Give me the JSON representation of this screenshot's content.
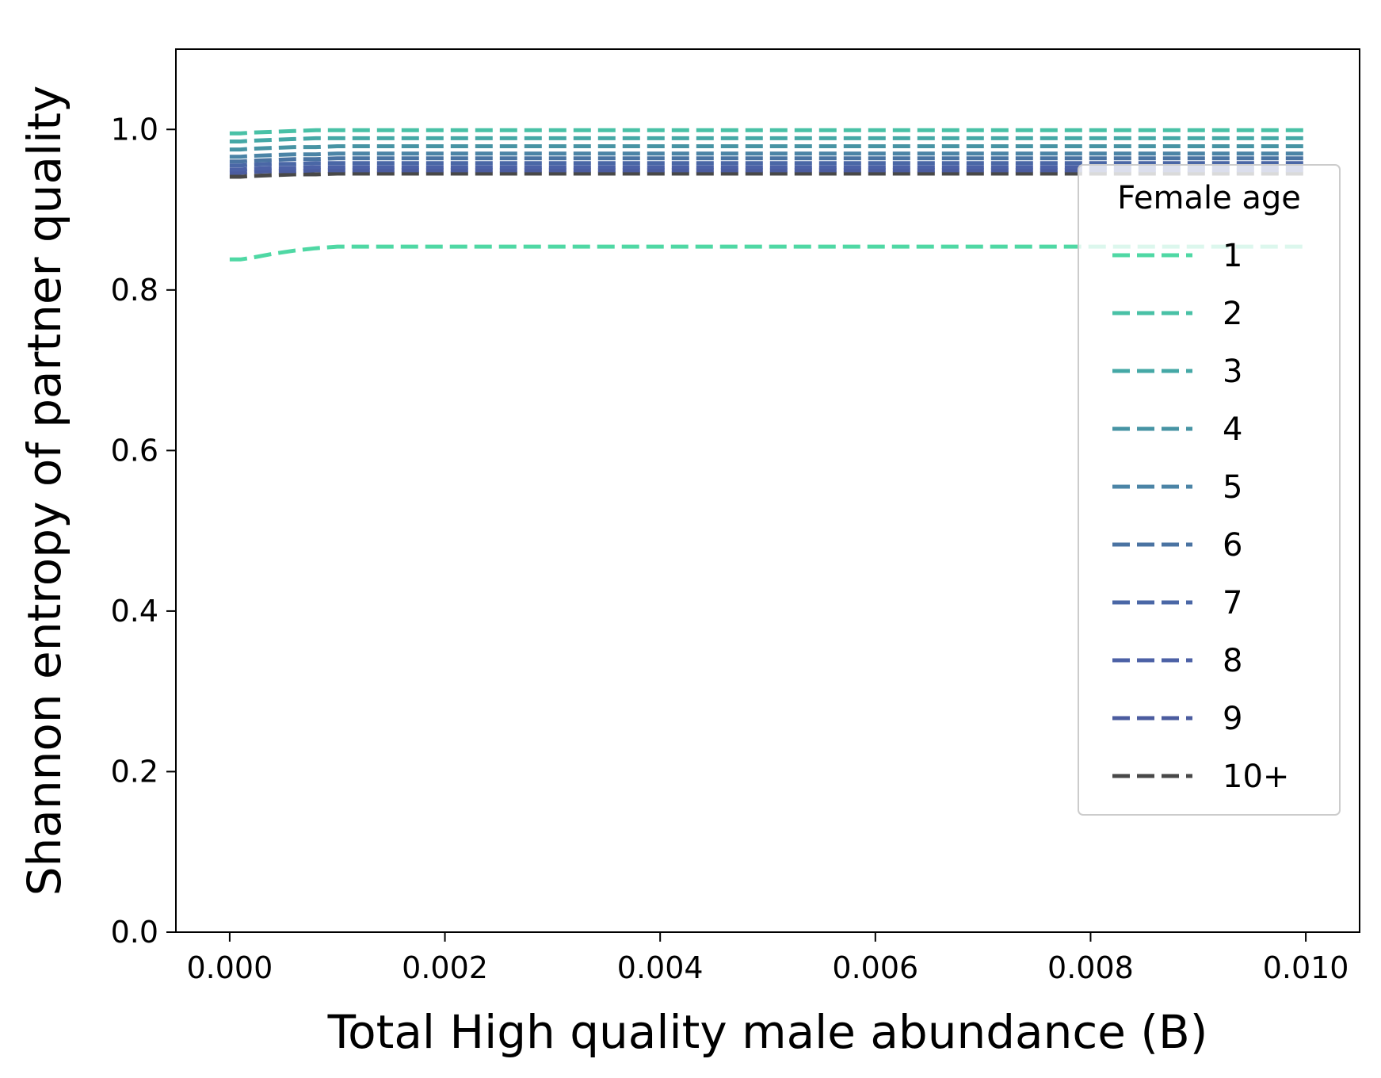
{
  "chart_data": {
    "type": "line",
    "title": "",
    "xlabel": "Total High quality male abundance (B)",
    "ylabel": "Shannon entropy of partner quality",
    "xlim": [
      -0.0005,
      0.0105
    ],
    "ylim": [
      0.0,
      1.1
    ],
    "xticks": [
      0.0,
      0.002,
      0.004,
      0.006,
      0.008,
      0.01
    ],
    "xtick_labels": [
      "0.000",
      "0.002",
      "0.004",
      "0.006",
      "0.008",
      "0.010"
    ],
    "yticks": [
      0.0,
      0.2,
      0.4,
      0.6,
      0.8,
      1.0
    ],
    "ytick_labels": [
      "0.0",
      "0.2",
      "0.4",
      "0.6",
      "0.8",
      "1.0"
    ],
    "grid": false,
    "legend": {
      "title": "Female age",
      "placement": "right"
    },
    "x": [
      0.0,
      0.0001,
      0.0002,
      0.0004,
      0.0006,
      0.0008,
      0.001,
      0.002,
      0.004,
      0.006,
      0.008,
      0.01
    ],
    "series": [
      {
        "name": "1",
        "color": "#4fd8a4",
        "style": "dashed",
        "values": [
          0.838,
          0.838,
          0.84,
          0.845,
          0.849,
          0.852,
          0.854,
          0.854,
          0.854,
          0.854,
          0.854,
          0.854
        ]
      },
      {
        "name": "2",
        "color": "#49c1a6",
        "style": "dashed",
        "values": [
          0.995,
          0.995,
          0.996,
          0.997,
          0.998,
          0.999,
          0.999,
          0.999,
          0.999,
          0.999,
          0.999,
          0.999
        ]
      },
      {
        "name": "3",
        "color": "#45a8a6",
        "style": "dashed",
        "values": [
          0.985,
          0.985,
          0.986,
          0.987,
          0.988,
          0.989,
          0.989,
          0.989,
          0.989,
          0.989,
          0.989,
          0.989
        ]
      },
      {
        "name": "4",
        "color": "#4794a4",
        "style": "dashed",
        "values": [
          0.975,
          0.975,
          0.976,
          0.977,
          0.978,
          0.978,
          0.979,
          0.979,
          0.979,
          0.979,
          0.979,
          0.979
        ]
      },
      {
        "name": "5",
        "color": "#4b84a6",
        "style": "dashed",
        "values": [
          0.966,
          0.966,
          0.967,
          0.968,
          0.969,
          0.969,
          0.97,
          0.97,
          0.97,
          0.97,
          0.97,
          0.97
        ]
      },
      {
        "name": "6",
        "color": "#4a73a2",
        "style": "dashed",
        "values": [
          0.96,
          0.96,
          0.961,
          0.962,
          0.963,
          0.963,
          0.964,
          0.964,
          0.964,
          0.964,
          0.964,
          0.964
        ]
      },
      {
        "name": "7",
        "color": "#4a67a6",
        "style": "dashed",
        "values": [
          0.955,
          0.955,
          0.956,
          0.957,
          0.957,
          0.958,
          0.958,
          0.958,
          0.958,
          0.958,
          0.958,
          0.958
        ]
      },
      {
        "name": "8",
        "color": "#4c61a6",
        "style": "dashed",
        "values": [
          0.95,
          0.95,
          0.951,
          0.952,
          0.952,
          0.953,
          0.953,
          0.953,
          0.953,
          0.953,
          0.953,
          0.953
        ]
      },
      {
        "name": "9",
        "color": "#4b5c9f",
        "style": "dashed",
        "values": [
          0.946,
          0.946,
          0.947,
          0.948,
          0.948,
          0.949,
          0.949,
          0.949,
          0.949,
          0.949,
          0.949,
          0.949
        ]
      },
      {
        "name": "10+",
        "color": "#484848",
        "style": "dashed",
        "values": [
          0.941,
          0.941,
          0.942,
          0.943,
          0.944,
          0.944,
          0.945,
          0.945,
          0.945,
          0.945,
          0.945,
          0.945
        ]
      }
    ]
  }
}
